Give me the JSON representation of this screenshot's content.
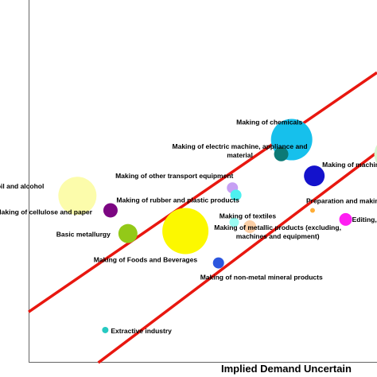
{
  "chart_data": {
    "type": "scatter",
    "title": "",
    "xlabel": "Implied Demand Uncertain",
    "ylabel": "",
    "xlim": [
      0,
      100
    ],
    "ylim": [
      0,
      100
    ],
    "grid": false,
    "legend": "none",
    "points": [
      {
        "label": "Making of chemicals",
        "x": 75.5,
        "y": 61.5,
        "size": 26,
        "color": "#16c0ec"
      },
      {
        "label": "Making of electric machine, appliance and material",
        "x": 72.5,
        "y": 57.5,
        "size": 9,
        "color": "#0c7a76"
      },
      {
        "label": "Making of machines and equipment",
        "x": 82,
        "y": 51.5,
        "size": 13,
        "color": "#1412cc"
      },
      {
        "label": "",
        "x": 104,
        "y": 57.5,
        "size": 21,
        "color": "#d4f7cd"
      },
      {
        "label": "",
        "x": 104,
        "y": 51,
        "size": 4,
        "color": "#9fb6ff"
      },
      {
        "label": "Making and refining of oil and alcohol",
        "x": 14,
        "y": 46,
        "size": 24,
        "color": "#fcfcab"
      },
      {
        "label": "Making of other transport equipment",
        "x": 58.5,
        "y": 48.2,
        "size": 7,
        "color": "#c6a0f4"
      },
      {
        "label": "Making of rubber and plastic products",
        "x": 59.5,
        "y": 46.2,
        "size": 7,
        "color": "#4df0f0"
      },
      {
        "label": "Making of cellulose and paper",
        "x": 23.5,
        "y": 42,
        "size": 9,
        "color": "#7c0682"
      },
      {
        "label": "Making of Foods and Beverages",
        "x": 45,
        "y": 36.3,
        "size": 29,
        "color": "#fcf800"
      },
      {
        "label": "Basic metallurgy",
        "x": 28.5,
        "y": 35.6,
        "size": 12,
        "color": "#93c918"
      },
      {
        "label": "Making of textiles",
        "x": 59,
        "y": 38.7,
        "size": 6,
        "color": "#9bfcf3"
      },
      {
        "label": "Making of metallic products (excluding, machines and equipment)",
        "x": 63.5,
        "y": 37.5,
        "size": 8,
        "color": "#fbcfa6"
      },
      {
        "label": "Preparation and making of leather",
        "x": 81.5,
        "y": 42,
        "size": 3,
        "color": "#ffad36"
      },
      {
        "label": "Editing, Printing",
        "x": 91,
        "y": 39.5,
        "size": 8,
        "color": "#ff1ef2"
      },
      {
        "label": "Making of non-metal mineral products",
        "x": 54.5,
        "y": 27.5,
        "size": 7,
        "color": "#2c56de"
      },
      {
        "label": "Extractive industry",
        "x": 22,
        "y": 9,
        "size": 4,
        "color": "#26c9c1"
      }
    ],
    "lines": [
      {
        "x": [
          0,
          100
        ],
        "y": [
          14,
          80
        ],
        "color": "#e8170f"
      },
      {
        "x": [
          20,
          100
        ],
        "y": [
          0,
          58
        ],
        "color": "#e8170f"
      }
    ]
  }
}
